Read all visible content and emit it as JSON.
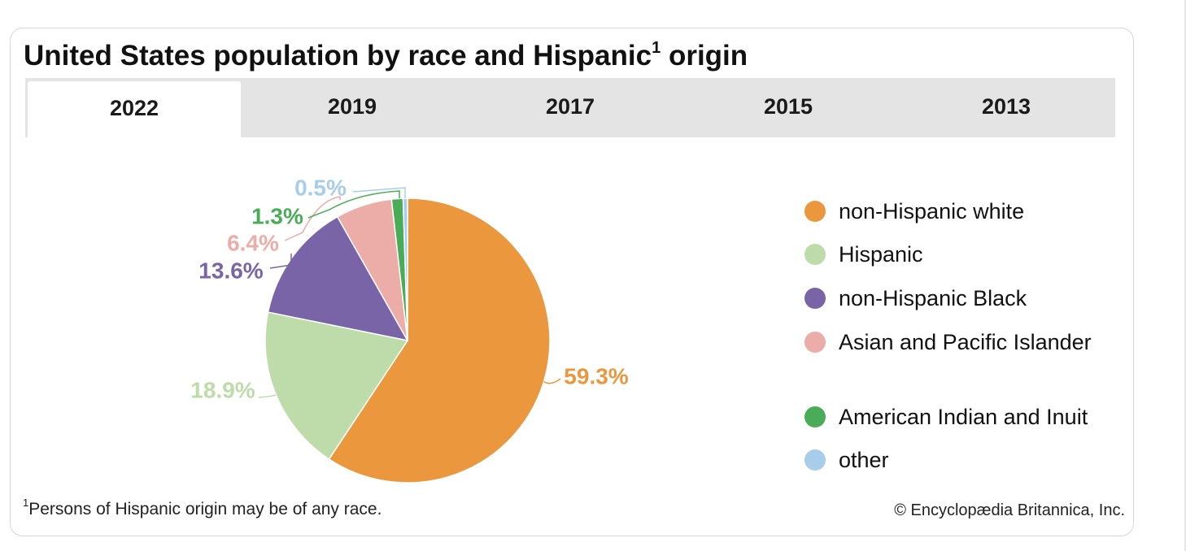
{
  "title": {
    "text": "United States population by race and Hispanic",
    "sup": "1",
    "suffix": "origin"
  },
  "tabs": [
    {
      "label": "2022",
      "active": true
    },
    {
      "label": "2019",
      "active": false
    },
    {
      "label": "2017",
      "active": false
    },
    {
      "label": "2015",
      "active": false
    },
    {
      "label": "2013",
      "active": false
    }
  ],
  "chart_data": {
    "type": "pie",
    "title": "United States population by race and Hispanic origin",
    "year": "2022",
    "start_angle_deg": 0,
    "direction": "clockwise",
    "slices": [
      {
        "name": "non-Hispanic white",
        "value": 59.3,
        "label": "59.3%",
        "color": "#eb973e"
      },
      {
        "name": "Hispanic",
        "value": 18.9,
        "label": "18.9%",
        "color": "#bddca9"
      },
      {
        "name": "non-Hispanic Black",
        "value": 13.6,
        "label": "13.6%",
        "color": "#7864a6"
      },
      {
        "name": "Asian and Pacific Islander",
        "value": 6.4,
        "label": "6.4%",
        "color": "#ecaca8"
      },
      {
        "name": "American Indian and Inuit",
        "value": 1.3,
        "label": "1.3%",
        "color": "#4aac56"
      },
      {
        "name": "other",
        "value": 0.5,
        "label": "0.5%",
        "color": "#a7cdea"
      }
    ],
    "legend": [
      "non-Hispanic white",
      "Hispanic",
      "non-Hispanic Black",
      "Asian and Pacific Islander",
      "American Indian and Inuit",
      "other"
    ],
    "legend_position": "right"
  },
  "footnote": {
    "sup": "1",
    "text": "Persons of Hispanic origin may be of any race."
  },
  "credit": "© Encyclopædia Britannica, Inc."
}
